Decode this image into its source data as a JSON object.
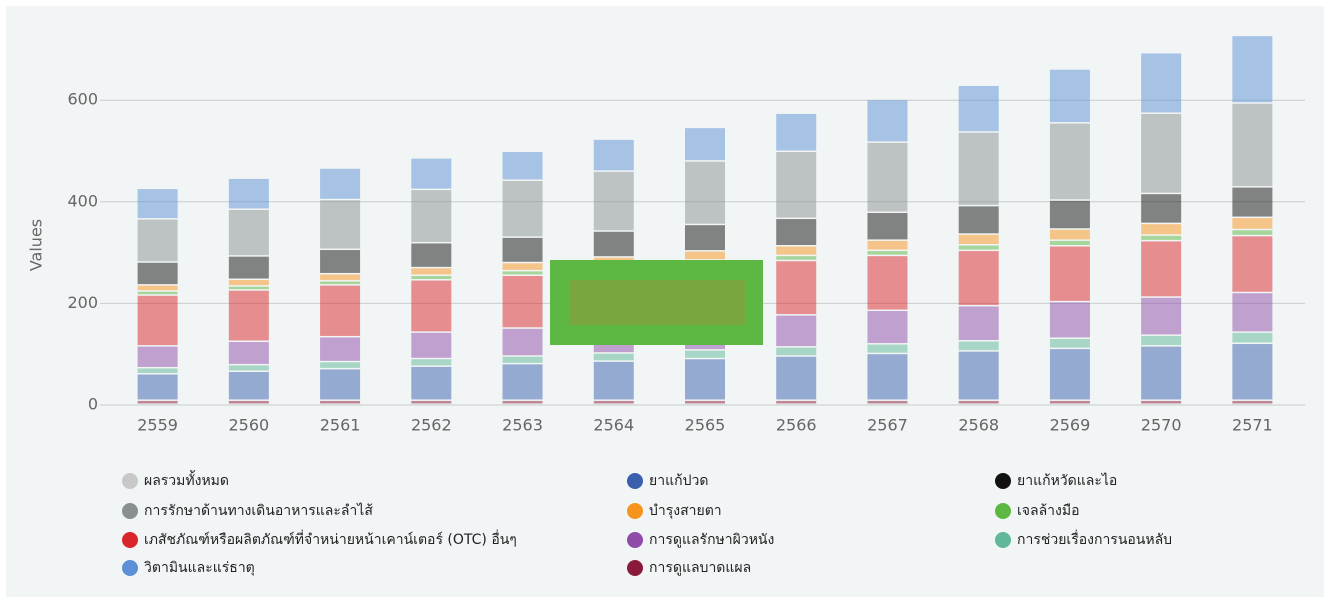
{
  "chart_data": {
    "type": "stacked_bar",
    "y_label": "Values",
    "categories": [
      "2559",
      "2560",
      "2561",
      "2562",
      "2563",
      "2564",
      "2565",
      "2566",
      "2567",
      "2568",
      "2569",
      "2570",
      "2571"
    ],
    "ylim": [
      0,
      750
    ],
    "yticks": [
      0,
      200,
      400,
      600
    ],
    "grid": true,
    "series": [
      {
        "name": "ผลรวมทั้งหมด",
        "color": "#c8c8c8",
        "values": [
          null,
          null,
          null,
          null,
          null,
          null,
          null,
          null,
          null,
          null,
          null,
          null,
          null
        ]
      },
      {
        "name": "การรักษาด้านทางเดินอาหารและลำไส้",
        "color": "#8a8f8f",
        "values": [
          85,
          92,
          98,
          105,
          112,
          118,
          125,
          132,
          138,
          145,
          152,
          158,
          165
        ]
      },
      {
        "name": "เภสัชภัณฑ์หรือผลิตภัณฑ์ที่จำหน่ายหน้าเคาน์เตอร์ (OTC) อื่นๆ",
        "color": "#d9262a",
        "values": [
          100,
          101,
          102,
          103,
          104,
          105,
          106,
          107,
          108,
          109,
          110,
          111,
          112
        ]
      },
      {
        "name": "วิตามินและแร่ธาตุ",
        "color": "#5b8fd6",
        "values": [
          60,
          61,
          62,
          62,
          57,
          63,
          66,
          75,
          84,
          92,
          106,
          119,
          133
        ]
      },
      {
        "name": "ยาแก้ปวด",
        "color": "#3a5fad",
        "values": [
          52,
          57,
          62,
          67,
          72,
          77,
          82,
          87,
          92,
          97,
          102,
          107,
          112
        ]
      },
      {
        "name": "บำรุงสายตา",
        "color": "#f7941d",
        "values": [
          12,
          13,
          14,
          15,
          16,
          17,
          18,
          19,
          20,
          21,
          22,
          23,
          24
        ]
      },
      {
        "name": "การดูแลรักษาผิวหนัง",
        "color": "#8e4ba8",
        "values": [
          43,
          46,
          49,
          52,
          55,
          58,
          61,
          63,
          66,
          69,
          72,
          75,
          78
        ]
      },
      {
        "name": "การดูแลบาดแผล",
        "color": "#8b1a3a",
        "values": [
          8,
          8,
          8,
          8,
          8,
          8,
          8,
          8,
          8,
          8,
          8,
          8,
          8
        ]
      },
      {
        "name": "ยาแก้หวัดและไอ",
        "color": "#111111",
        "values": [
          45,
          46,
          48,
          49,
          50,
          51,
          52,
          54,
          55,
          56,
          57,
          59,
          60
        ]
      },
      {
        "name": "เจลล้างมือ",
        "color": "#5cb843",
        "values": [
          8,
          8,
          8,
          9,
          9,
          9,
          10,
          10,
          10,
          11,
          11,
          11,
          12
        ]
      },
      {
        "name": "การช่วยเรื่องการนอนหลับ",
        "color": "#5fb898",
        "values": [
          12,
          13,
          14,
          15,
          15,
          16,
          17,
          18,
          19,
          20,
          20,
          21,
          22
        ]
      }
    ]
  }
}
